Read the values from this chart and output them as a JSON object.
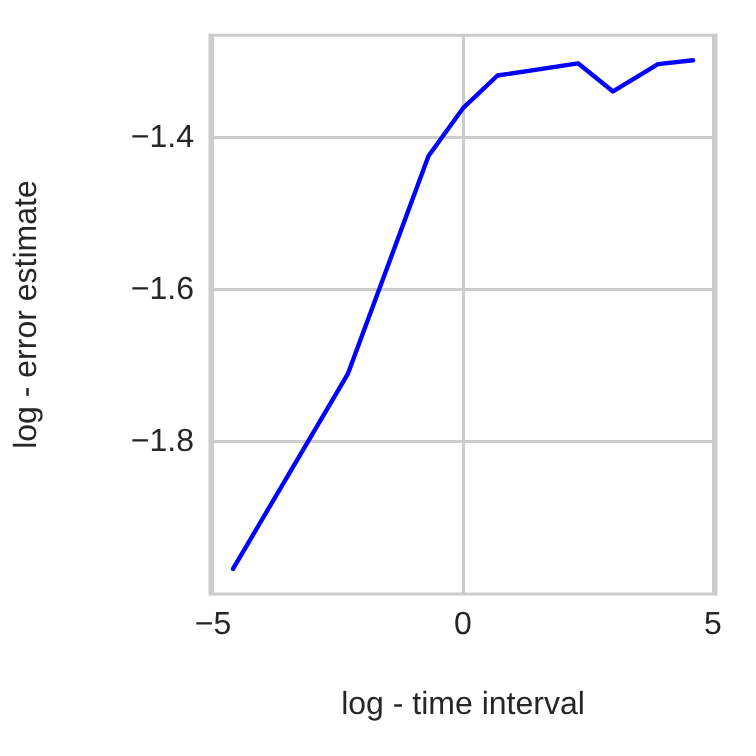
{
  "chart_data": {
    "type": "line",
    "xlabel": "log - time interval",
    "ylabel": "log - error estimate",
    "x": [
      -4.6,
      -2.3,
      -0.69,
      0,
      0.69,
      2.3,
      3.0,
      3.9,
      4.6
    ],
    "series": [
      {
        "color": "#0000ff",
        "values": [
          -1.967,
          -1.71,
          -1.424,
          -1.361,
          -1.318,
          -1.302,
          -1.339,
          -1.303,
          -1.298
        ]
      }
    ],
    "xlim": [
      -5.06,
      5.06
    ],
    "xticks": [
      {
        "value": -5,
        "label": "−5"
      },
      0,
      5
    ],
    "ylim": [
      -2.0,
      -1.265
    ],
    "yticks": [
      {
        "value": -1.8,
        "label": "−1.8"
      },
      {
        "value": -1.6,
        "label": "−1.6"
      },
      {
        "value": -1.4,
        "label": "−1.4"
      }
    ],
    "grid": true,
    "legend": false,
    "marker": "none",
    "line_style": "solid"
  }
}
